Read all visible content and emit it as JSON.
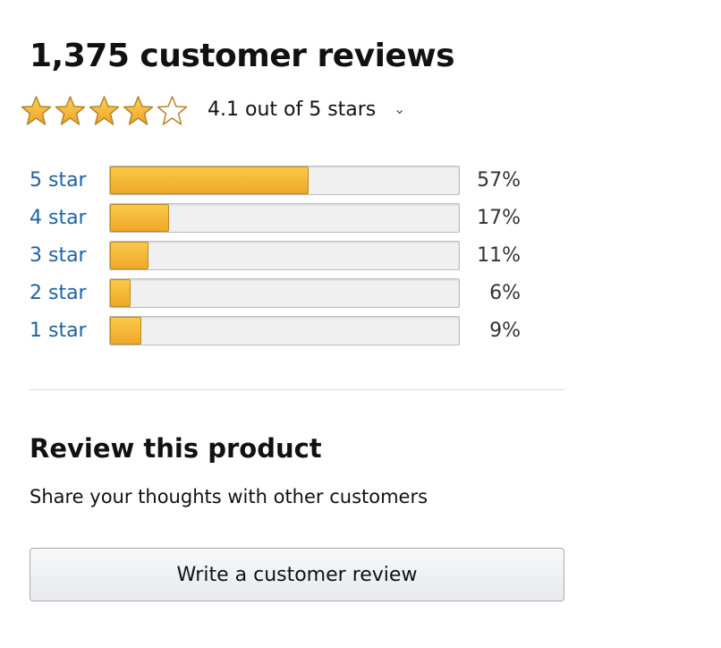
{
  "header": {
    "title": "1,375 customer reviews"
  },
  "rating": {
    "value": 4.1,
    "text": "4.1 out of 5 stars",
    "filled_stars": 4,
    "total_stars": 5,
    "star_color": "#f4b631"
  },
  "histogram": [
    {
      "label": "5 star",
      "percent": 57,
      "percent_text": "57%"
    },
    {
      "label": "4 star",
      "percent": 17,
      "percent_text": "17%"
    },
    {
      "label": "3 star",
      "percent": 11,
      "percent_text": "11%"
    },
    {
      "label": "2 star",
      "percent": 6,
      "percent_text": "6%"
    },
    {
      "label": "1 star",
      "percent": 9,
      "percent_text": "9%"
    }
  ],
  "review": {
    "heading": "Review this product",
    "subtext": "Share your thoughts with other customers",
    "button_label": "Write a customer review"
  },
  "colors": {
    "link": "#2162a1",
    "bar_fill": "#f4b631"
  }
}
